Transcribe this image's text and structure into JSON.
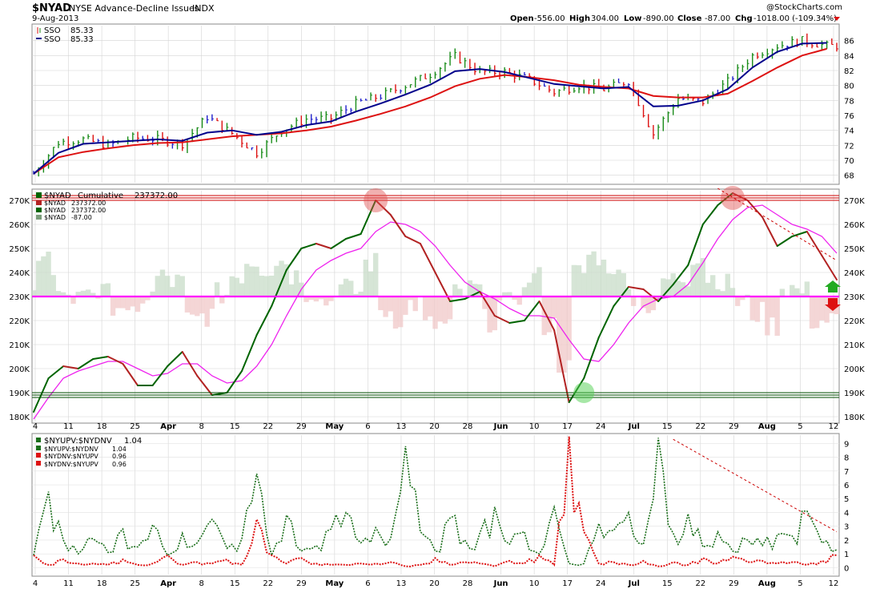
{
  "header": {
    "symbol": "$NYAD",
    "name": "NYSE Advance-Decline Issues",
    "exchange": "INDX",
    "date": "9-Aug-2013",
    "watermark": "@StockCharts.com",
    "open_label": "Open",
    "open": "-556.00",
    "high_label": "High",
    "high": "304.00",
    "low_label": "Low",
    "low": "-890.00",
    "close_label": "Close",
    "close": "-87.00",
    "chg_label": "Chg",
    "chg": "-1018.00 (-109.34%)"
  },
  "x_ticks": [
    "4",
    "11",
    "18",
    "25",
    "Apr",
    "8",
    "15",
    "22",
    "29",
    "May",
    "6",
    "13",
    "20",
    "28",
    "Jun",
    "10",
    "17",
    "24",
    "Jul",
    "15",
    "22",
    "29",
    "Aug",
    "5",
    "12"
  ],
  "bold_months": [
    "Apr",
    "May",
    "Jun",
    "Jul",
    "Aug"
  ],
  "colors": {
    "up": "#1a8c1a",
    "down": "#dd1111",
    "neutral": "#2222cc",
    "ma_short": "#00008b",
    "ma_long": "#dd1111",
    "nyad_up": "#006400",
    "nyad_down": "#b22222",
    "nyad_ma": "#ee22ee",
    "level_line": "#ff00ff",
    "resistance": "#cc0000",
    "support": "#004d00",
    "hist_pos": "#c8dcc8",
    "hist_neg": "#f0c8c8"
  },
  "panels": [
    {
      "id": "sso",
      "legend": [
        {
          "label": "SSO",
          "value": "85.33",
          "icon": "candle-icon"
        },
        {
          "label": "SSO",
          "value": "85.33",
          "icon": "line-icon"
        }
      ],
      "y_ticks": [
        68,
        70,
        72,
        74,
        76,
        78,
        80,
        82,
        84,
        86
      ],
      "ylim": [
        67,
        88
      ]
    },
    {
      "id": "nyad",
      "legend": [
        {
          "label": "$NYAD",
          "text": "Cumulative",
          "value": "237372.00"
        },
        {
          "label": "$NYAD",
          "value": "237372.00"
        },
        {
          "label": "$NYAD",
          "value": "237372.00"
        },
        {
          "label": "$NYAD",
          "value": "-87.00"
        }
      ],
      "y_ticks": [
        "180K",
        "190K",
        "200K",
        "210K",
        "220K",
        "230K",
        "240K",
        "250K",
        "260K",
        "270K"
      ],
      "y_tick_values": [
        180,
        190,
        200,
        210,
        220,
        230,
        240,
        250,
        260,
        270
      ],
      "ylim": [
        178,
        274
      ],
      "horizontal_level": 230,
      "resistance_band": [
        270,
        272
      ],
      "support_band": [
        188,
        190
      ]
    },
    {
      "id": "ratio",
      "legend": [
        {
          "label": "$NYUPV:$NYDNV",
          "value": "1.04"
        },
        {
          "label": "$NYUPV:$NYDNV",
          "value": "1.04"
        },
        {
          "label": "$NYDNV:$NYUPV",
          "value": "0.96"
        },
        {
          "label": "$NYDNV:$NYUPV",
          "value": "0.96"
        }
      ],
      "y_ticks": [
        "0",
        "1",
        "2",
        "3",
        "4",
        "5",
        "6",
        "7",
        "8",
        "9"
      ],
      "y_tick_values": [
        0,
        1,
        2,
        3,
        4,
        5,
        6,
        7,
        8,
        9
      ],
      "ylim": [
        -0.5,
        9.6
      ]
    }
  ],
  "chart_data": [
    {
      "type": "line",
      "title": "SSO",
      "ylim": [
        67,
        88
      ],
      "x_index": [
        0,
        5,
        10,
        15,
        20,
        25,
        30,
        35,
        40,
        45,
        50,
        55,
        60,
        65,
        70,
        75,
        80,
        85,
        90,
        95,
        100,
        105,
        110,
        115,
        120,
        125,
        130,
        135,
        140,
        145,
        150,
        155,
        160
      ],
      "series": [
        {
          "name": "SSO",
          "values": [
            68.2,
            72.4,
            72.8,
            72.0,
            73.0,
            72.8,
            72.2,
            75.8,
            73.6,
            71.0,
            74.0,
            75.5,
            75.6,
            77.6,
            78.6,
            80.0,
            81.5,
            83.9,
            81.8,
            81.8,
            80.8,
            79.1,
            80.0,
            79.5,
            80.6,
            73.5,
            78.3,
            77.8,
            80.5,
            84.0,
            85.3,
            86.0,
            85.3
          ]
        },
        {
          "name": "",
          "values": [
            68.2,
            71.0,
            72.2,
            72.4,
            72.6,
            72.8,
            72.6,
            73.7,
            74.0,
            73.4,
            73.8,
            74.7,
            75.2,
            76.5,
            77.6,
            78.8,
            80.1,
            81.9,
            82.2,
            81.8,
            81.0,
            80.2,
            79.9,
            79.6,
            79.8,
            77.2,
            77.3,
            78.0,
            79.5,
            82.4,
            84.5,
            85.6,
            85.7
          ]
        },
        {
          "name": "",
          "values": [
            68.2,
            70.4,
            71.1,
            71.6,
            72.0,
            72.3,
            72.4,
            72.8,
            73.2,
            73.4,
            73.6,
            74.0,
            74.5,
            75.3,
            76.2,
            77.2,
            78.4,
            79.9,
            80.9,
            81.4,
            81.1,
            80.7,
            80.1,
            79.8,
            79.6,
            78.6,
            78.4,
            78.4,
            78.9,
            80.6,
            82.4,
            84.0,
            84.9
          ]
        }
      ]
    },
    {
      "type": "line",
      "title": "$NYAD Cumulative",
      "ylim": [
        178,
        274
      ],
      "x_index": [
        0,
        3,
        6,
        9,
        12,
        15,
        18,
        21,
        24,
        27,
        30,
        33,
        36,
        39,
        42,
        45,
        48,
        51,
        54,
        57,
        60,
        63,
        66,
        69,
        72,
        75,
        78,
        81,
        84,
        87,
        90,
        93,
        96,
        99,
        102,
        105,
        108,
        111,
        114,
        117,
        120,
        123,
        126,
        129,
        132,
        135,
        138,
        141,
        144,
        147,
        150,
        153,
        156,
        159,
        162
      ],
      "series": [
        {
          "name": "$NYAD",
          "values": [
            182,
            196,
            201,
            200,
            204,
            205,
            202,
            193,
            193,
            201,
            207,
            197,
            189,
            190,
            199,
            214,
            226,
            241,
            250,
            252,
            250,
            254,
            256,
            270,
            264,
            255,
            252,
            240,
            228,
            229,
            232,
            222,
            219,
            220,
            228,
            216,
            186,
            196,
            213,
            226,
            234,
            233,
            228,
            235,
            243,
            260,
            268,
            273,
            270,
            263,
            251,
            255,
            257,
            247,
            237
          ]
        },
        {
          "name": "",
          "values": [
            179,
            188,
            196,
            199,
            201,
            203,
            203,
            200,
            197,
            198,
            202,
            202,
            197,
            194,
            195,
            201,
            210,
            222,
            233,
            241,
            245,
            248,
            250,
            257,
            261,
            260,
            257,
            251,
            243,
            236,
            232,
            229,
            225,
            222,
            222,
            221,
            212,
            204,
            203,
            210,
            219,
            226,
            229,
            230,
            235,
            244,
            254,
            262,
            267,
            268,
            264,
            260,
            258,
            255,
            248
          ]
        }
      ]
    },
    {
      "type": "line",
      "title": "$NYUPV:$NYDNV",
      "ylim": [
        -0.5,
        9.6
      ],
      "series": [
        {
          "name": "$NYUPV:$NYDNV",
          "values": [
            0.9,
            5.5,
            2.0,
            1.0,
            2.1,
            1.1,
            2.8,
            1.5,
            3.1,
            0.9,
            2.5,
            1.8,
            3.5,
            1.4,
            2.1,
            6.8,
            0.9,
            3.8,
            1.2,
            1.6,
            2.8,
            4.0,
            1.8,
            2.9,
            2.1,
            8.8,
            2.6,
            1.2,
            3.6,
            2.0,
            2.5,
            4.4,
            1.7,
            2.6,
            1.0,
            4.4,
            0.3,
            0.3,
            3.2,
            2.7,
            4.0,
            1.7,
            9.4,
            2.5,
            3.9,
            1.5,
            2.6,
            1.2,
            2.0,
            1.6,
            2.4,
            2.3,
            4.1,
            1.8,
            1.3
          ]
        },
        {
          "name": "$NYDNV:$NYUPV",
          "values": [
            0.9,
            0.2,
            0.6,
            0.3,
            0.3,
            0.2,
            0.6,
            0.2,
            0.3,
            0.9,
            0.2,
            0.4,
            0.3,
            0.6,
            0.2,
            3.5,
            0.9,
            0.3,
            0.7,
            0.3,
            0.2,
            0.2,
            0.3,
            0.3,
            0.4,
            0.1,
            0.2,
            0.7,
            0.2,
            0.4,
            0.3,
            0.1,
            0.5,
            0.3,
            0.9,
            0.2,
            9.5,
            2.6,
            0.3,
            0.4,
            0.2,
            0.5,
            0.1,
            0.4,
            0.2,
            0.7,
            0.3,
            0.8,
            0.4,
            0.5,
            0.3,
            0.4,
            0.2,
            0.5,
            0.9
          ]
        }
      ]
    }
  ]
}
